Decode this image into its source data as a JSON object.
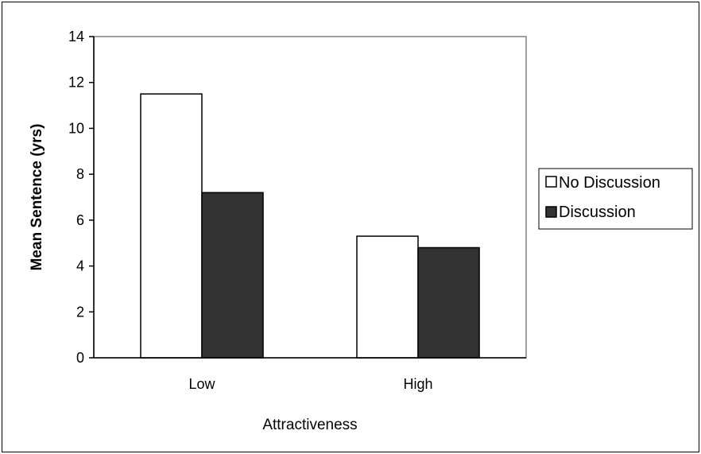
{
  "chart_data": {
    "type": "bar",
    "xlabel": "Attractiveness",
    "ylabel": "Mean Sentence (yrs)",
    "categories": [
      "Low",
      "High"
    ],
    "series": [
      {
        "name": "No Discussion",
        "values": [
          11.5,
          5.3
        ],
        "color": "#ffffff"
      },
      {
        "name": "Discussion",
        "values": [
          7.2,
          4.8
        ],
        "color": "#333333"
      }
    ],
    "ylim": [
      0,
      14
    ],
    "yticks": [
      "0",
      "2",
      "4",
      "6",
      "8",
      "10",
      "12",
      "14"
    ],
    "grid": false,
    "legend_position": "right"
  }
}
